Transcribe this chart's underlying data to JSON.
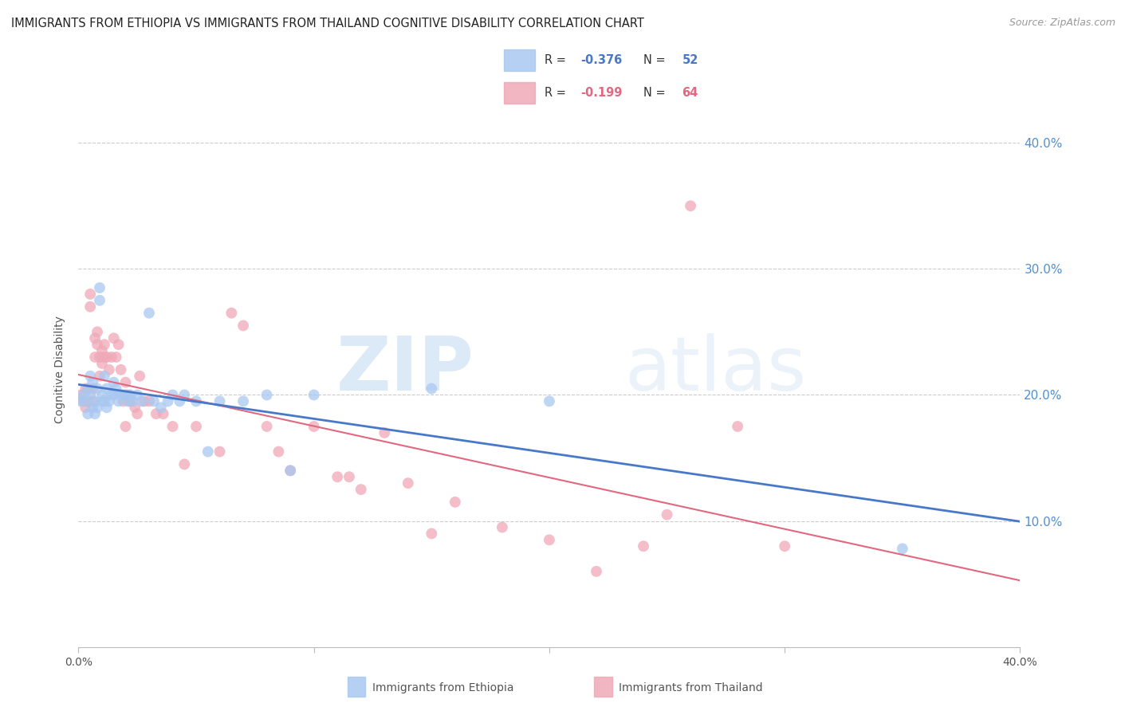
{
  "title": "IMMIGRANTS FROM ETHIOPIA VS IMMIGRANTS FROM THAILAND COGNITIVE DISABILITY CORRELATION CHART",
  "source": "Source: ZipAtlas.com",
  "ylabel": "Cognitive Disability",
  "watermark": "ZIPatlas",
  "ethiopia_color": "#a8c8f0",
  "thailand_color": "#f0a8b8",
  "ethiopia_line_color": "#4878c8",
  "thailand_line_color": "#e06880",
  "xlim": [
    0.0,
    0.4
  ],
  "ylim": [
    0.0,
    0.44
  ],
  "ytick_vals": [
    0.1,
    0.2,
    0.3,
    0.4
  ],
  "xtick_vals": [
    0.0,
    0.1,
    0.2,
    0.3,
    0.4
  ],
  "ethiopia_points_x": [
    0.001,
    0.002,
    0.003,
    0.004,
    0.004,
    0.005,
    0.005,
    0.006,
    0.006,
    0.007,
    0.007,
    0.008,
    0.008,
    0.009,
    0.009,
    0.01,
    0.01,
    0.011,
    0.011,
    0.012,
    0.012,
    0.013,
    0.014,
    0.015,
    0.015,
    0.016,
    0.017,
    0.018,
    0.019,
    0.02,
    0.021,
    0.022,
    0.023,
    0.025,
    0.027,
    0.03,
    0.032,
    0.035,
    0.038,
    0.04,
    0.043,
    0.045,
    0.05,
    0.055,
    0.06,
    0.07,
    0.08,
    0.09,
    0.1,
    0.15,
    0.2,
    0.35
  ],
  "ethiopia_points_y": [
    0.195,
    0.2,
    0.195,
    0.205,
    0.185,
    0.2,
    0.215,
    0.19,
    0.21,
    0.195,
    0.185,
    0.205,
    0.19,
    0.275,
    0.285,
    0.2,
    0.195,
    0.215,
    0.195,
    0.205,
    0.19,
    0.195,
    0.2,
    0.21,
    0.2,
    0.205,
    0.195,
    0.2,
    0.2,
    0.2,
    0.195,
    0.2,
    0.195,
    0.2,
    0.195,
    0.265,
    0.195,
    0.19,
    0.195,
    0.2,
    0.195,
    0.2,
    0.195,
    0.155,
    0.195,
    0.195,
    0.2,
    0.14,
    0.2,
    0.205,
    0.195,
    0.078
  ],
  "thailand_points_x": [
    0.001,
    0.002,
    0.003,
    0.003,
    0.004,
    0.004,
    0.005,
    0.005,
    0.006,
    0.006,
    0.007,
    0.007,
    0.008,
    0.008,
    0.009,
    0.009,
    0.01,
    0.01,
    0.011,
    0.011,
    0.012,
    0.013,
    0.014,
    0.015,
    0.016,
    0.017,
    0.018,
    0.019,
    0.02,
    0.021,
    0.022,
    0.024,
    0.026,
    0.028,
    0.03,
    0.033,
    0.036,
    0.04,
    0.045,
    0.05,
    0.06,
    0.065,
    0.07,
    0.08,
    0.085,
    0.09,
    0.1,
    0.11,
    0.12,
    0.13,
    0.14,
    0.15,
    0.16,
    0.18,
    0.2,
    0.22,
    0.24,
    0.26,
    0.28,
    0.3,
    0.02,
    0.025,
    0.115,
    0.25
  ],
  "thailand_points_y": [
    0.2,
    0.195,
    0.205,
    0.19,
    0.205,
    0.195,
    0.28,
    0.27,
    0.205,
    0.195,
    0.245,
    0.23,
    0.25,
    0.24,
    0.23,
    0.215,
    0.235,
    0.225,
    0.24,
    0.23,
    0.23,
    0.22,
    0.23,
    0.245,
    0.23,
    0.24,
    0.22,
    0.195,
    0.21,
    0.2,
    0.195,
    0.19,
    0.215,
    0.195,
    0.195,
    0.185,
    0.185,
    0.175,
    0.145,
    0.175,
    0.155,
    0.265,
    0.255,
    0.175,
    0.155,
    0.14,
    0.175,
    0.135,
    0.125,
    0.17,
    0.13,
    0.09,
    0.115,
    0.095,
    0.085,
    0.06,
    0.08,
    0.35,
    0.175,
    0.08,
    0.175,
    0.185,
    0.135,
    0.105
  ]
}
